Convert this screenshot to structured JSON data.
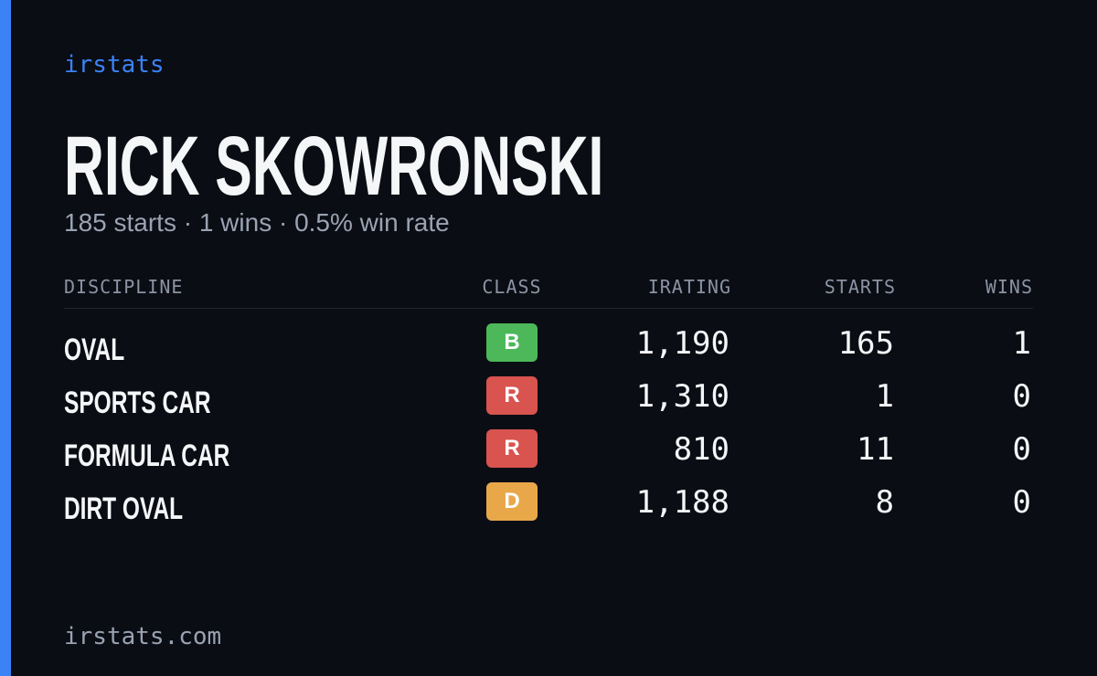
{
  "header": {
    "logo": "irstats",
    "title": "RICK SKOWRONSKI",
    "subtitle": "185 starts · 1 wins · 0.5% win rate"
  },
  "table": {
    "columns": [
      "DISCIPLINE",
      "CLASS",
      "IRATING",
      "STARTS",
      "WINS"
    ],
    "rows": [
      {
        "discipline": "OVAL",
        "class": "B",
        "class_color": "#4cb85a",
        "irating": "1,190",
        "starts": "165",
        "wins": "1"
      },
      {
        "discipline": "SPORTS CAR",
        "class": "R",
        "class_color": "#d9534f",
        "irating": "1,310",
        "starts": "1",
        "wins": "0"
      },
      {
        "discipline": "FORMULA CAR",
        "class": "R",
        "class_color": "#d9534f",
        "irating": "810",
        "starts": "11",
        "wins": "0"
      },
      {
        "discipline": "DIRT OVAL",
        "class": "D",
        "class_color": "#e8a84a",
        "irating": "1,188",
        "starts": "8",
        "wins": "0"
      }
    ]
  },
  "footer": {
    "url": "irstats.com"
  }
}
